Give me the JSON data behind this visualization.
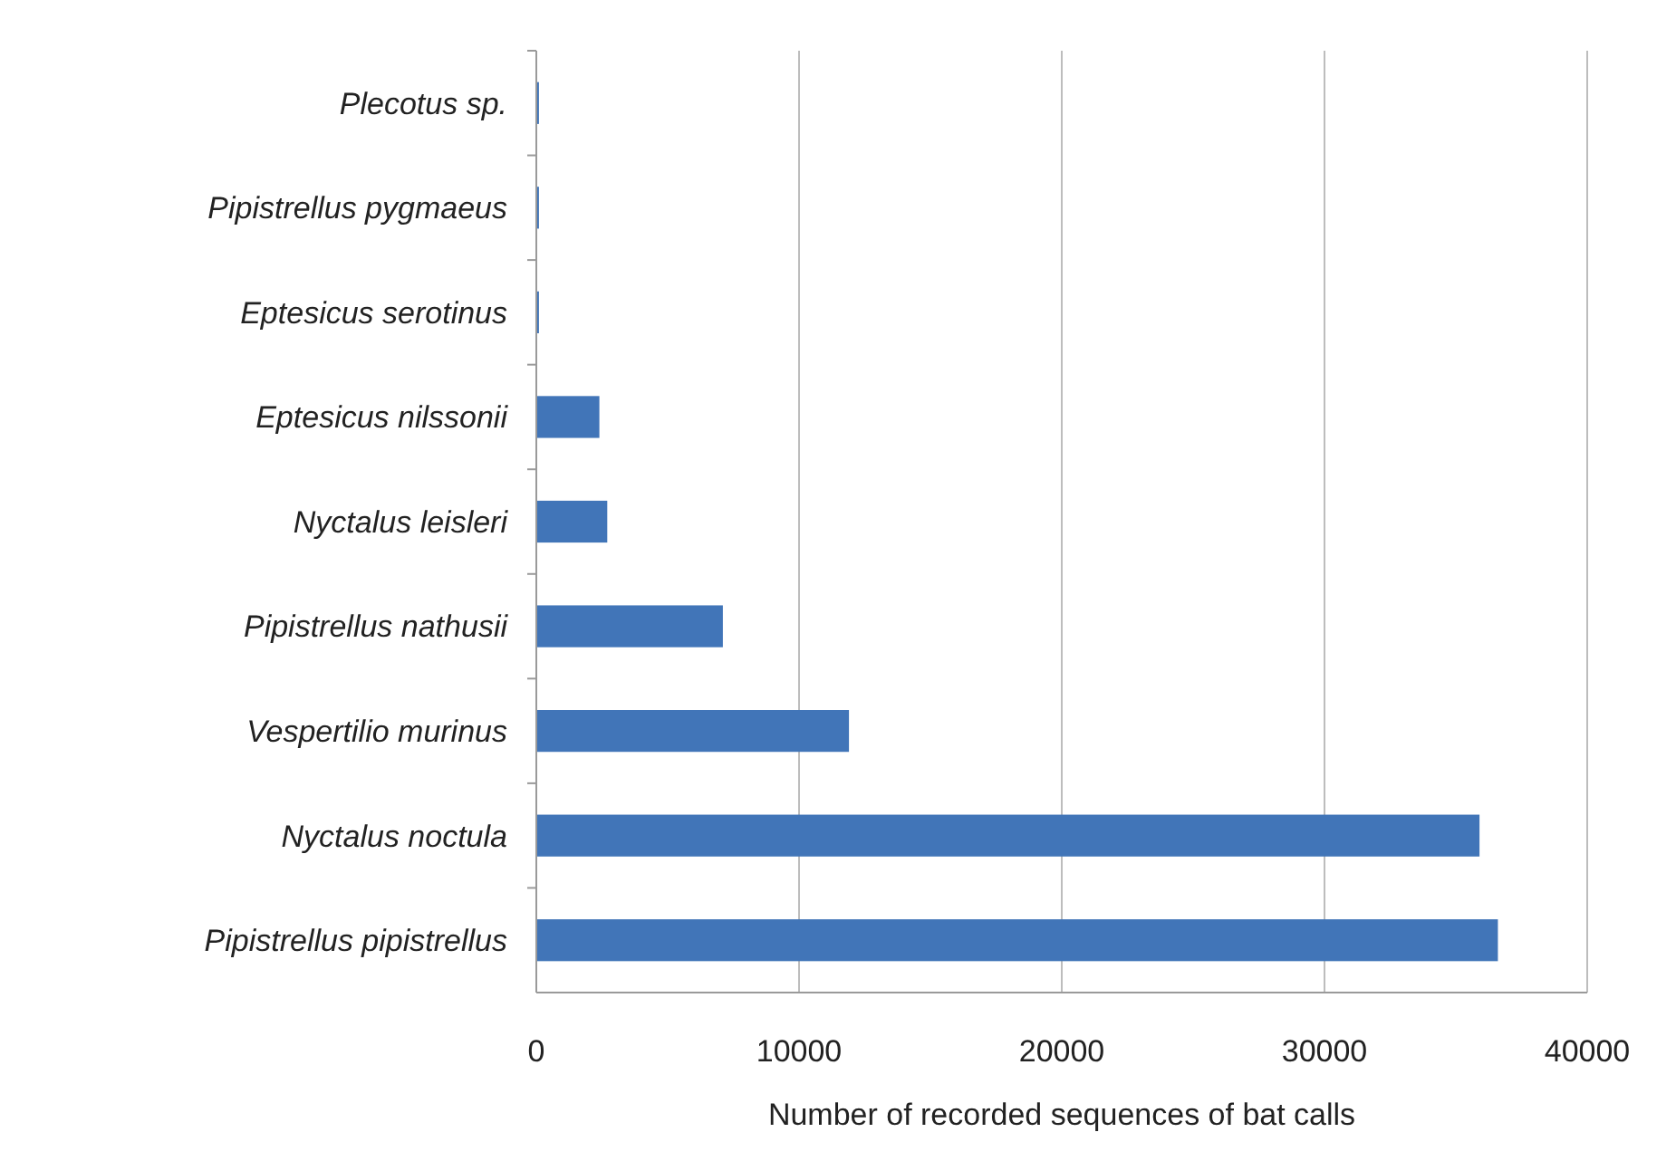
{
  "chart_data": {
    "type": "bar",
    "orientation": "horizontal",
    "xlabel": "Number of recorded sequences of bat calls",
    "categories": [
      "Plecotus sp.",
      "Pipistrellus pygmaeus",
      "Eptesicus serotinus",
      "Eptesicus nilssonii",
      "Nyctalus leisleri",
      "Pipistrellus nathusii",
      "Vespertilio murinus",
      "Nyctalus noctula",
      "Pipistrellus pipistrellus"
    ],
    "values": [
      100,
      100,
      100,
      2400,
      2700,
      7100,
      11900,
      35900,
      36600
    ],
    "color": "#4175b8",
    "xlim": [
      0,
      40000
    ],
    "xticks": [
      0,
      10000,
      20000,
      30000,
      40000
    ],
    "grid": "x"
  }
}
